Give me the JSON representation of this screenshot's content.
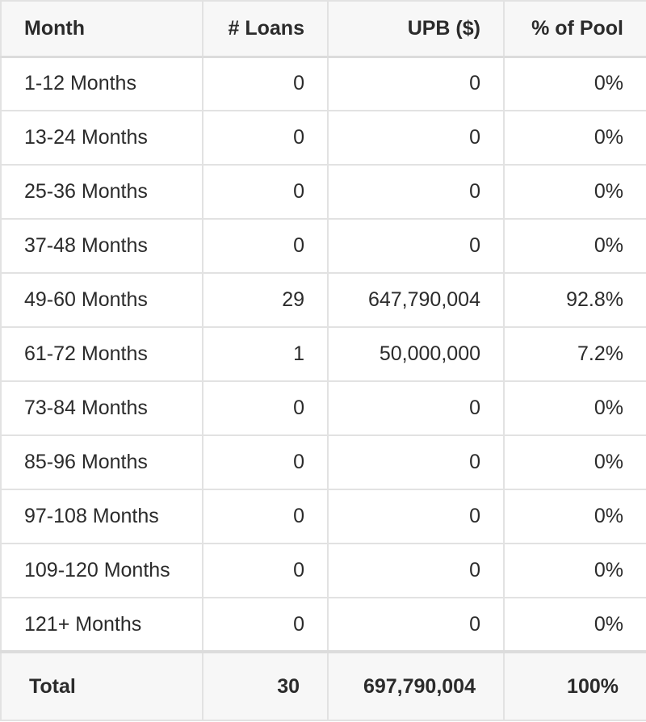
{
  "headers": {
    "month": "Month",
    "loans": "# Loans",
    "upb": "UPB ($)",
    "pct": "% of Pool"
  },
  "rows": [
    {
      "month": "1-12 Months",
      "loans": "0",
      "upb": "0",
      "pct": "0%"
    },
    {
      "month": "13-24 Months",
      "loans": "0",
      "upb": "0",
      "pct": "0%"
    },
    {
      "month": "25-36 Months",
      "loans": "0",
      "upb": "0",
      "pct": "0%"
    },
    {
      "month": "37-48 Months",
      "loans": "0",
      "upb": "0",
      "pct": "0%"
    },
    {
      "month": "49-60 Months",
      "loans": "29",
      "upb": "647,790,004",
      "pct": "92.8%"
    },
    {
      "month": "61-72 Months",
      "loans": "1",
      "upb": "50,000,000",
      "pct": "7.2%"
    },
    {
      "month": "73-84 Months",
      "loans": "0",
      "upb": "0",
      "pct": "0%"
    },
    {
      "month": "85-96 Months",
      "loans": "0",
      "upb": "0",
      "pct": "0%"
    },
    {
      "month": "97-108 Months",
      "loans": "0",
      "upb": "0",
      "pct": "0%"
    },
    {
      "month": "109-120 Months",
      "loans": "0",
      "upb": "0",
      "pct": "0%"
    },
    {
      "month": "121+ Months",
      "loans": "0",
      "upb": "0",
      "pct": "0%"
    }
  ],
  "total": {
    "label": "Total",
    "loans": "30",
    "upb": "697,790,004",
    "pct": "100%"
  }
}
